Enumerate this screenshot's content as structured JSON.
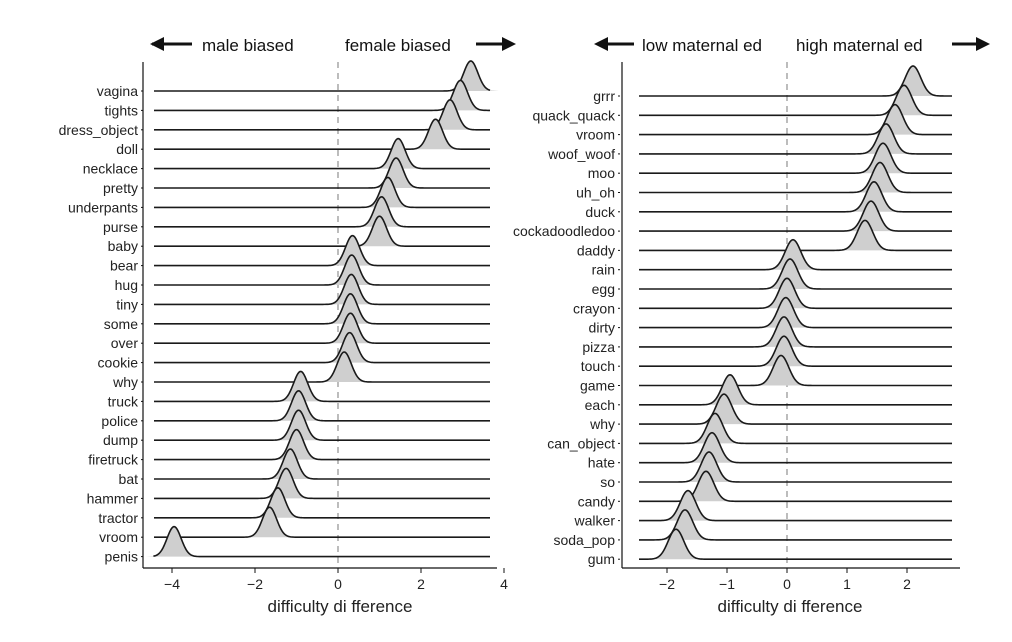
{
  "chart_data": [
    {
      "type": "ridgeline",
      "xlabel": "difficulty di fference",
      "xlim": [
        -4.6,
        4
      ],
      "xticks": [
        -4,
        -2,
        0,
        2,
        4
      ],
      "xtick_labels": [
        "−4",
        "−2",
        "0",
        "2",
        "4"
      ],
      "reference_line_x": 0,
      "direction_left": "male biased",
      "direction_right": "female biased",
      "series": [
        {
          "label": "vagina",
          "peak": 3.2
        },
        {
          "label": "tights",
          "peak": 2.95
        },
        {
          "label": "dress_object",
          "peak": 2.7
        },
        {
          "label": "doll",
          "peak": 2.35
        },
        {
          "label": "necklace",
          "peak": 1.45
        },
        {
          "label": "pretty",
          "peak": 1.4
        },
        {
          "label": "underpants",
          "peak": 1.2
        },
        {
          "label": "purse",
          "peak": 1.05
        },
        {
          "label": "baby",
          "peak": 1.0
        },
        {
          "label": "bear",
          "peak": 0.35
        },
        {
          "label": "hug",
          "peak": 0.33
        },
        {
          "label": "tiny",
          "peak": 0.32
        },
        {
          "label": "some",
          "peak": 0.3
        },
        {
          "label": "over",
          "peak": 0.3
        },
        {
          "label": "cookie",
          "peak": 0.28
        },
        {
          "label": "why",
          "peak": 0.15
        },
        {
          "label": "truck",
          "peak": -0.9
        },
        {
          "label": "police",
          "peak": -0.95
        },
        {
          "label": "dump",
          "peak": -0.95
        },
        {
          "label": "firetruck",
          "peak": -1.0
        },
        {
          "label": "bat",
          "peak": -1.15
        },
        {
          "label": "hammer",
          "peak": -1.25
        },
        {
          "label": "tractor",
          "peak": -1.45
        },
        {
          "label": "vroom",
          "peak": -1.65
        },
        {
          "label": "penis",
          "peak": -3.95
        }
      ]
    },
    {
      "type": "ridgeline",
      "xlabel": "difficulty di fference",
      "xlim": [
        -2.7,
        2.8
      ],
      "xticks": [
        -2,
        -1,
        0,
        1,
        2
      ],
      "xtick_labels": [
        "−2",
        "−1",
        "0",
        "1",
        "2"
      ],
      "reference_line_x": 0,
      "direction_left": "low maternal ed",
      "direction_right": "high maternal ed",
      "series": [
        {
          "label": "grrr",
          "peak": 2.1
        },
        {
          "label": "quack_quack",
          "peak": 1.95
        },
        {
          "label": "vroom",
          "peak": 1.8
        },
        {
          "label": "woof_woof",
          "peak": 1.65
        },
        {
          "label": "moo",
          "peak": 1.6
        },
        {
          "label": "uh_oh",
          "peak": 1.55
        },
        {
          "label": "duck",
          "peak": 1.45
        },
        {
          "label": "cockadoodledoo",
          "peak": 1.4
        },
        {
          "label": "daddy",
          "peak": 1.3
        },
        {
          "label": "rain",
          "peak": 0.1
        },
        {
          "label": "egg",
          "peak": 0.05
        },
        {
          "label": "crayon",
          "peak": 0.0
        },
        {
          "label": "dirty",
          "peak": -0.02
        },
        {
          "label": "pizza",
          "peak": -0.05
        },
        {
          "label": "touch",
          "peak": -0.05
        },
        {
          "label": "game",
          "peak": -0.1
        },
        {
          "label": "each",
          "peak": -0.95
        },
        {
          "label": "why",
          "peak": -1.05
        },
        {
          "label": "can_object",
          "peak": -1.2
        },
        {
          "label": "hate",
          "peak": -1.25
        },
        {
          "label": "so",
          "peak": -1.3
        },
        {
          "label": "candy",
          "peak": -1.35
        },
        {
          "label": "walker",
          "peak": -1.65
        },
        {
          "label": "soda_pop",
          "peak": -1.7
        },
        {
          "label": "gum",
          "peak": -1.85
        }
      ]
    }
  ]
}
